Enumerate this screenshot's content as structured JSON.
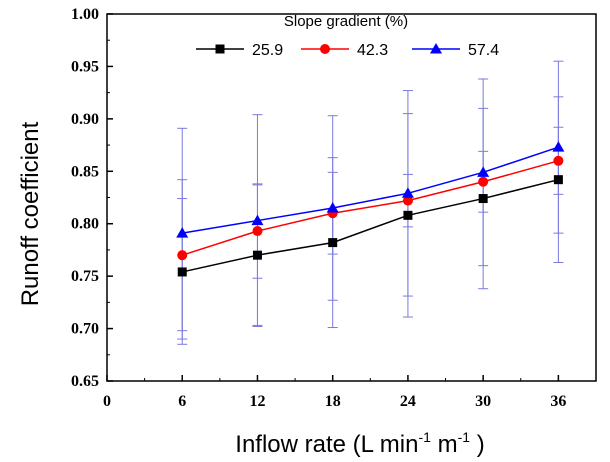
{
  "chart_data": {
    "type": "line",
    "xlabel": "Inflow rate (L min",
    "xlabel_sup1": "-1",
    "xlabel_mid": " m",
    "xlabel_sup2": "-1",
    "xlabel_end": " )",
    "ylabel": "Runoff coefficient",
    "xlim": [
      0,
      39
    ],
    "ylim": [
      0.65,
      1.0
    ],
    "x_ticks": [
      "0",
      "6",
      "12",
      "18",
      "24",
      "30",
      "36"
    ],
    "y_ticks": [
      "0.65",
      "0.70",
      "0.75",
      "0.80",
      "0.85",
      "0.90",
      "0.95",
      "1.00"
    ],
    "legend_title": "Slope gradient (%)",
    "legend_position": "top",
    "grid": false,
    "x": [
      6,
      12,
      18,
      24,
      30,
      36
    ],
    "series": [
      {
        "name": "25.9",
        "color": "#000000",
        "marker": "square",
        "values": [
          0.754,
          0.77,
          0.782,
          0.808,
          0.824,
          0.842
        ],
        "error_low": [
          0.685,
          0.703,
          0.701,
          0.711,
          0.738,
          0.763
        ],
        "error_high": [
          0.824,
          0.837,
          0.863,
          0.905,
          0.91,
          0.921
        ]
      },
      {
        "name": "42.3",
        "color": "#ff0000",
        "marker": "circle",
        "values": [
          0.77,
          0.793,
          0.81,
          0.822,
          0.84,
          0.86
        ],
        "error_low": [
          0.698,
          0.748,
          0.771,
          0.797,
          0.811,
          0.828
        ],
        "error_high": [
          0.842,
          0.838,
          0.849,
          0.847,
          0.869,
          0.892
        ]
      },
      {
        "name": "57.4",
        "color": "#0000ff",
        "marker": "triangle",
        "values": [
          0.791,
          0.803,
          0.815,
          0.829,
          0.849,
          0.873
        ],
        "error_low": [
          0.69,
          0.702,
          0.727,
          0.731,
          0.76,
          0.791
        ],
        "error_high": [
          0.891,
          0.904,
          0.903,
          0.927,
          0.938,
          0.955
        ]
      }
    ],
    "error_bar_color": "#7a7ae0"
  }
}
